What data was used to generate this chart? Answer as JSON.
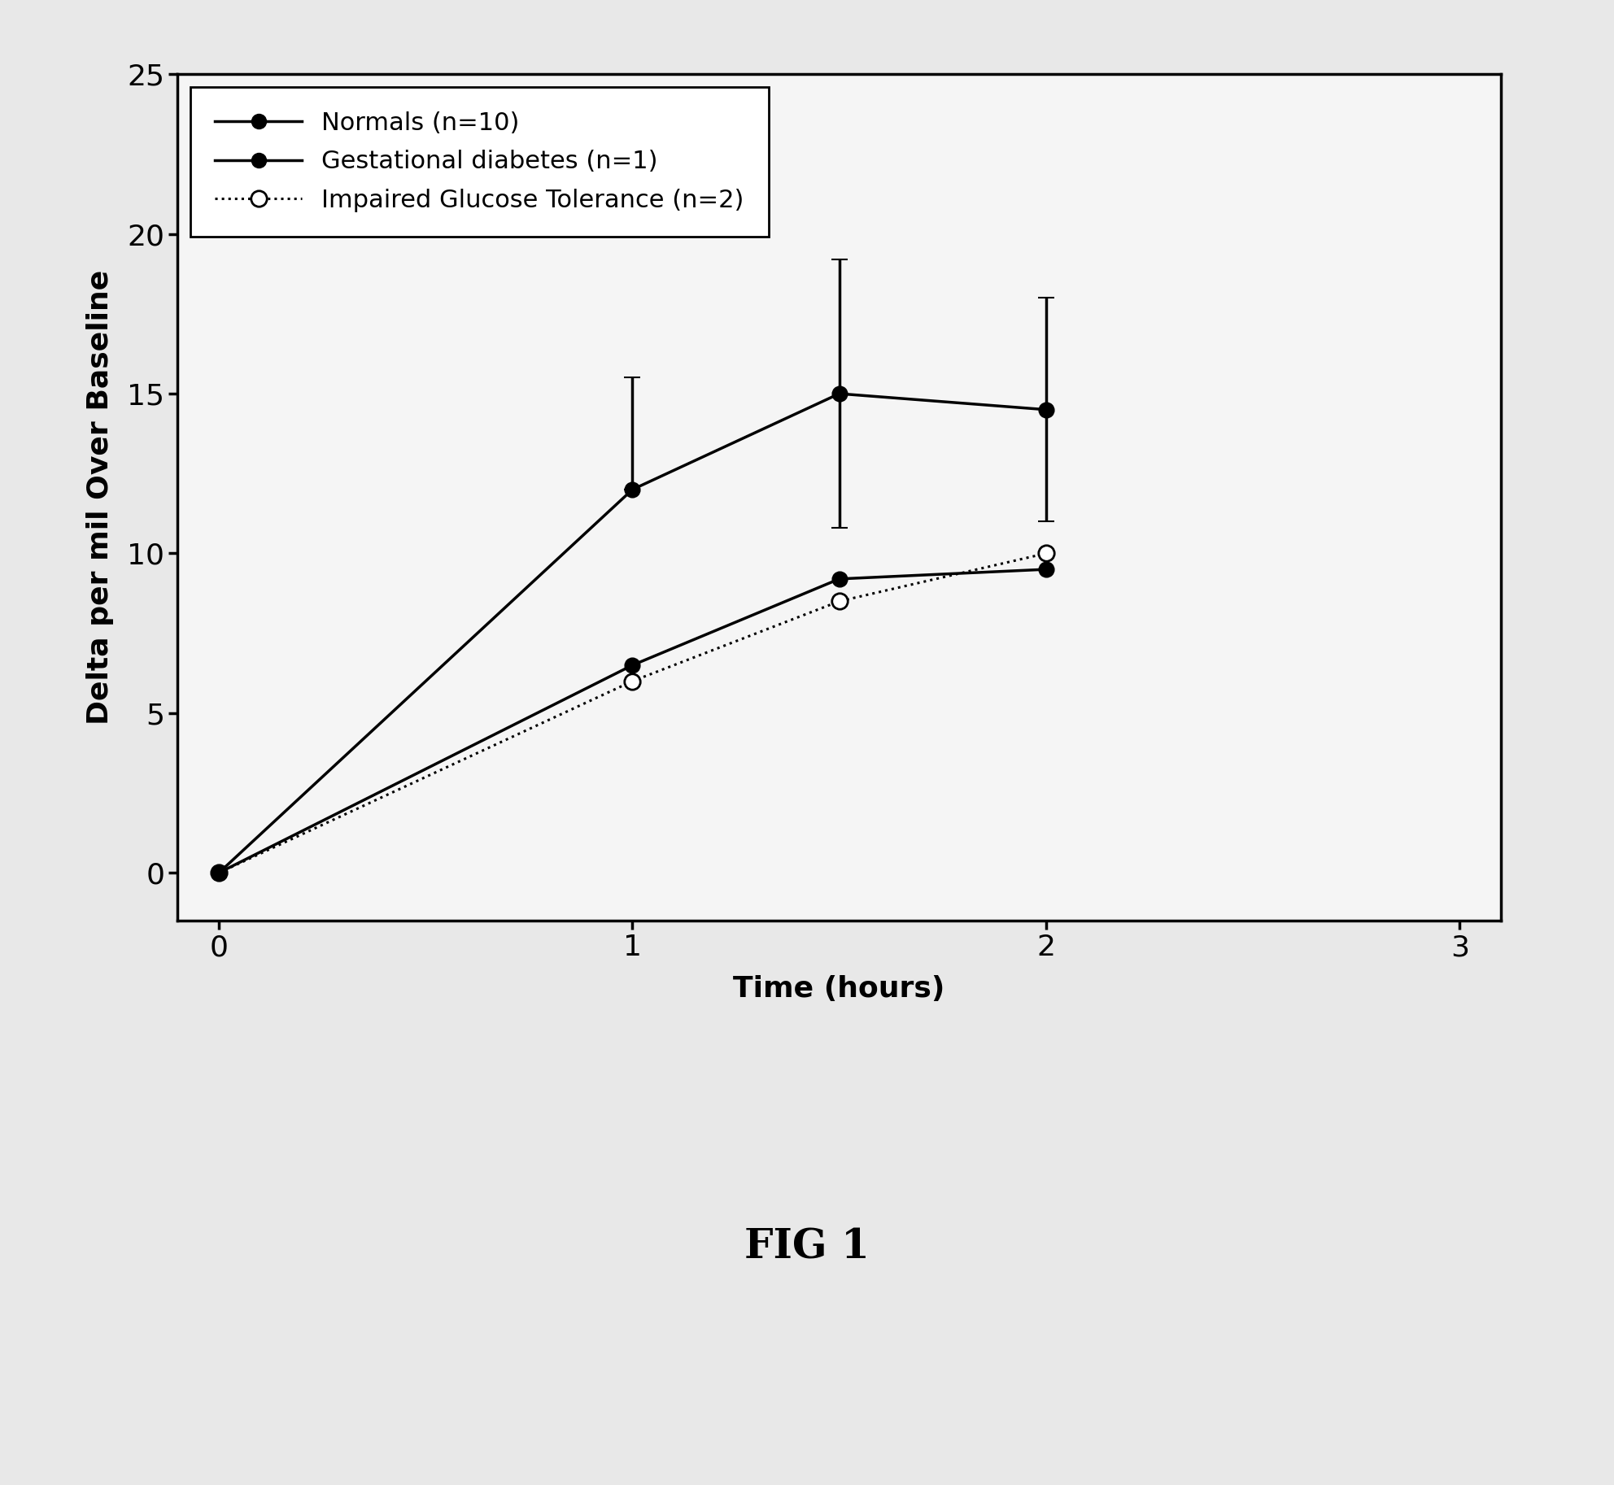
{
  "title": "FIG 1",
  "xlabel": "Time (hours)",
  "ylabel": "Delta per mil Over Baseline",
  "xlim": [
    -0.1,
    3.1
  ],
  "ylim": [
    -1.5,
    25
  ],
  "xticks": [
    0,
    1,
    2,
    3
  ],
  "yticks": [
    0,
    5,
    10,
    15,
    20,
    25
  ],
  "series": {
    "normals": {
      "x": [
        0,
        1,
        1.5,
        2
      ],
      "y": [
        0,
        12,
        15,
        14.5
      ],
      "yerr": [
        0,
        3.5,
        4.2,
        3.5
      ],
      "label": "Normals (n=10)",
      "color": "#000000",
      "linestyle": "-",
      "marker": "o",
      "markersize": 13,
      "markerfacecolor": "#000000",
      "linewidth": 2.5
    },
    "gestational": {
      "x": [
        0,
        1,
        1.5,
        2
      ],
      "y": [
        0,
        6.5,
        9.2,
        9.5
      ],
      "label": "Gestational diabetes (n=1)",
      "color": "#000000",
      "linestyle": "-",
      "marker": "o",
      "markersize": 13,
      "markerfacecolor": "#000000",
      "linewidth": 2.5
    },
    "impaired": {
      "x": [
        0,
        1,
        1.5,
        2
      ],
      "y": [
        0,
        6.0,
        8.5,
        10.0
      ],
      "label": "Impaired Glucose Tolerance (n=2)",
      "color": "#000000",
      "linestyle": "dotted",
      "marker": "o",
      "markersize": 14,
      "markerfacecolor": "#ffffff",
      "linewidth": 2.2
    }
  },
  "background_color": "#f0f0f0",
  "figure_facecolor": "#e8e8e8",
  "plot_area_facecolor": "#f5f5f5"
}
